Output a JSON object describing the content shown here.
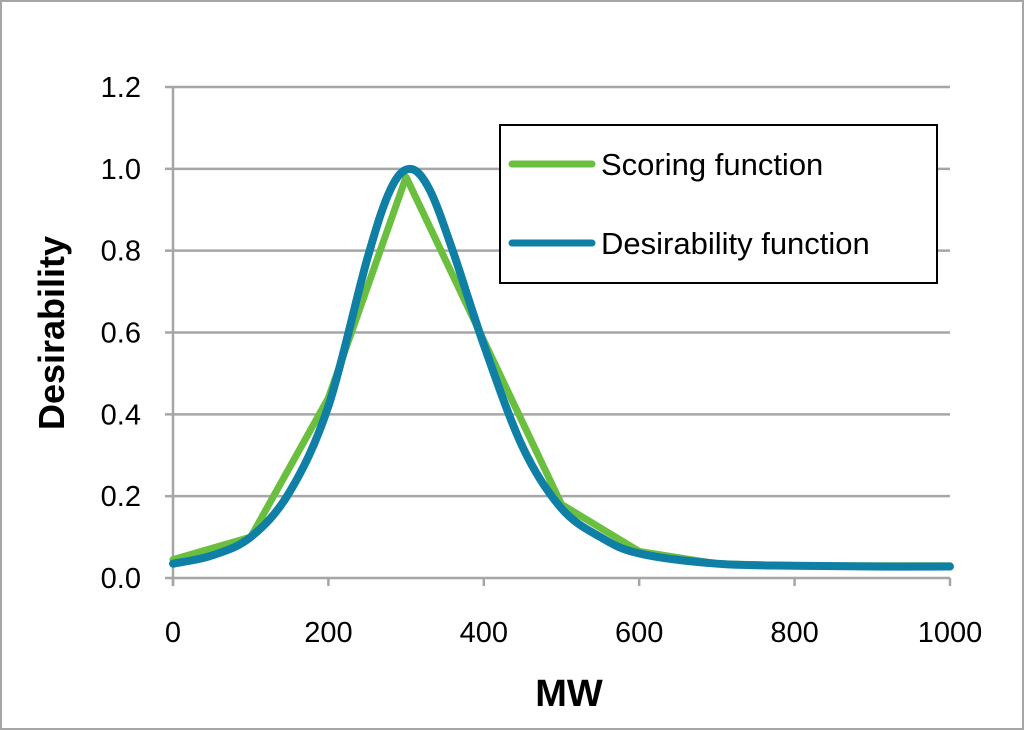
{
  "chart_data": {
    "type": "line",
    "title": "",
    "xlabel": "MW",
    "ylabel": "Desirability",
    "xlim": [
      0,
      1000
    ],
    "ylim": [
      0,
      1.2
    ],
    "xticks": [
      "0",
      "200",
      "400",
      "600",
      "800",
      "1000"
    ],
    "yticks": [
      "0.0",
      "0.2",
      "0.4",
      "0.6",
      "0.8",
      "1.0",
      "1.2"
    ],
    "grid": "horizontal",
    "legend": "top-right",
    "series": [
      {
        "name": "Scoring function",
        "color": "#6abf3f",
        "smooth": false,
        "x": [
          0,
          100,
          200,
          300,
          400,
          500,
          600,
          700,
          800,
          900,
          1000
        ],
        "y": [
          0.045,
          0.1,
          0.44,
          0.98,
          0.58,
          0.18,
          0.065,
          0.035,
          0.03,
          0.03,
          0.03
        ]
      },
      {
        "name": "Desirability function",
        "color": "#0f7fa6",
        "smooth": true,
        "x": [
          0,
          50,
          100,
          150,
          200,
          250,
          280,
          305,
          330,
          360,
          400,
          450,
          500,
          550,
          600,
          700,
          800,
          900,
          1000
        ],
        "y": [
          0.035,
          0.055,
          0.1,
          0.21,
          0.42,
          0.78,
          0.95,
          1.0,
          0.95,
          0.8,
          0.57,
          0.32,
          0.17,
          0.1,
          0.06,
          0.035,
          0.03,
          0.028,
          0.028
        ]
      }
    ]
  }
}
